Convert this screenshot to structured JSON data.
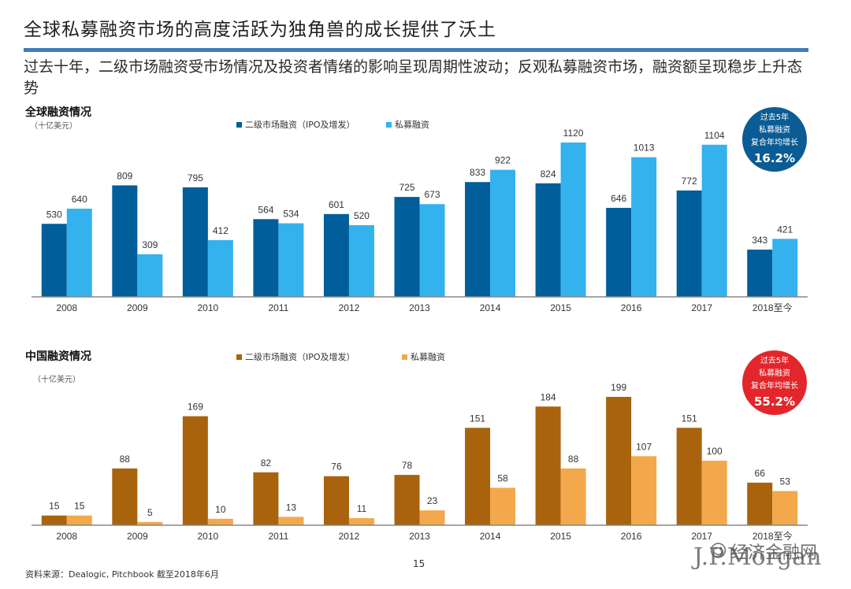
{
  "page": {
    "title": "全球私募融资市场的高度活跃为独角兽的成长提供了沃土",
    "subtitle": "过去十年，二级市场融资受市场情况及投资者情绪的影响呈现周期性波动；反观私募融资市场，融资额呈现稳步上升态势",
    "source": "资料来源：Dealogic, Pitchbook 截至2018年6月",
    "page_number": "15",
    "brand": "J.P.Morgan",
    "watermark": "经济金融网"
  },
  "global_section": {
    "title": "全球融资情况",
    "unit": "（十亿美元）",
    "badge": {
      "line1": "过去5年",
      "line2": "私募融资",
      "line3": "复合年均增长",
      "value": "16.2%",
      "color": "#0b5c94"
    }
  },
  "china_section": {
    "title": "中国融资情况",
    "unit": "（十亿美元）",
    "badge": {
      "line1": "过去5年",
      "line2": "私募融资",
      "line3": "复合年均增长",
      "value": "55.2%",
      "color": "#e3262b"
    }
  },
  "chart_data": [
    {
      "type": "bar",
      "categories": [
        "2008",
        "2009",
        "2010",
        "2011",
        "2012",
        "2013",
        "2014",
        "2015",
        "2016",
        "2017",
        "2018至今"
      ],
      "series": [
        {
          "name": "二级市场融资（IPO及增发）",
          "color": "#005e9a",
          "values": [
            530,
            809,
            795,
            564,
            601,
            725,
            833,
            824,
            646,
            772,
            343
          ]
        },
        {
          "name": "私募融资",
          "color": "#33b2ee",
          "values": [
            640,
            309,
            412,
            534,
            520,
            673,
            922,
            1120,
            1013,
            1104,
            421
          ]
        }
      ],
      "ylim": [
        0,
        1120
      ]
    },
    {
      "type": "bar",
      "categories": [
        "2008",
        "2009",
        "2010",
        "2011",
        "2012",
        "2013",
        "2014",
        "2015",
        "2016",
        "2017",
        "2018至今"
      ],
      "series": [
        {
          "name": "二级市场融资（IPO及增发）",
          "color": "#a9630c",
          "values": [
            15,
            88,
            169,
            82,
            76,
            78,
            151,
            184,
            199,
            151,
            66
          ]
        },
        {
          "name": "私募融资",
          "color": "#f2a84b",
          "values": [
            15,
            5,
            10,
            13,
            11,
            23,
            58,
            88,
            107,
            100,
            53
          ]
        }
      ],
      "ylim": [
        0,
        199
      ]
    }
  ]
}
